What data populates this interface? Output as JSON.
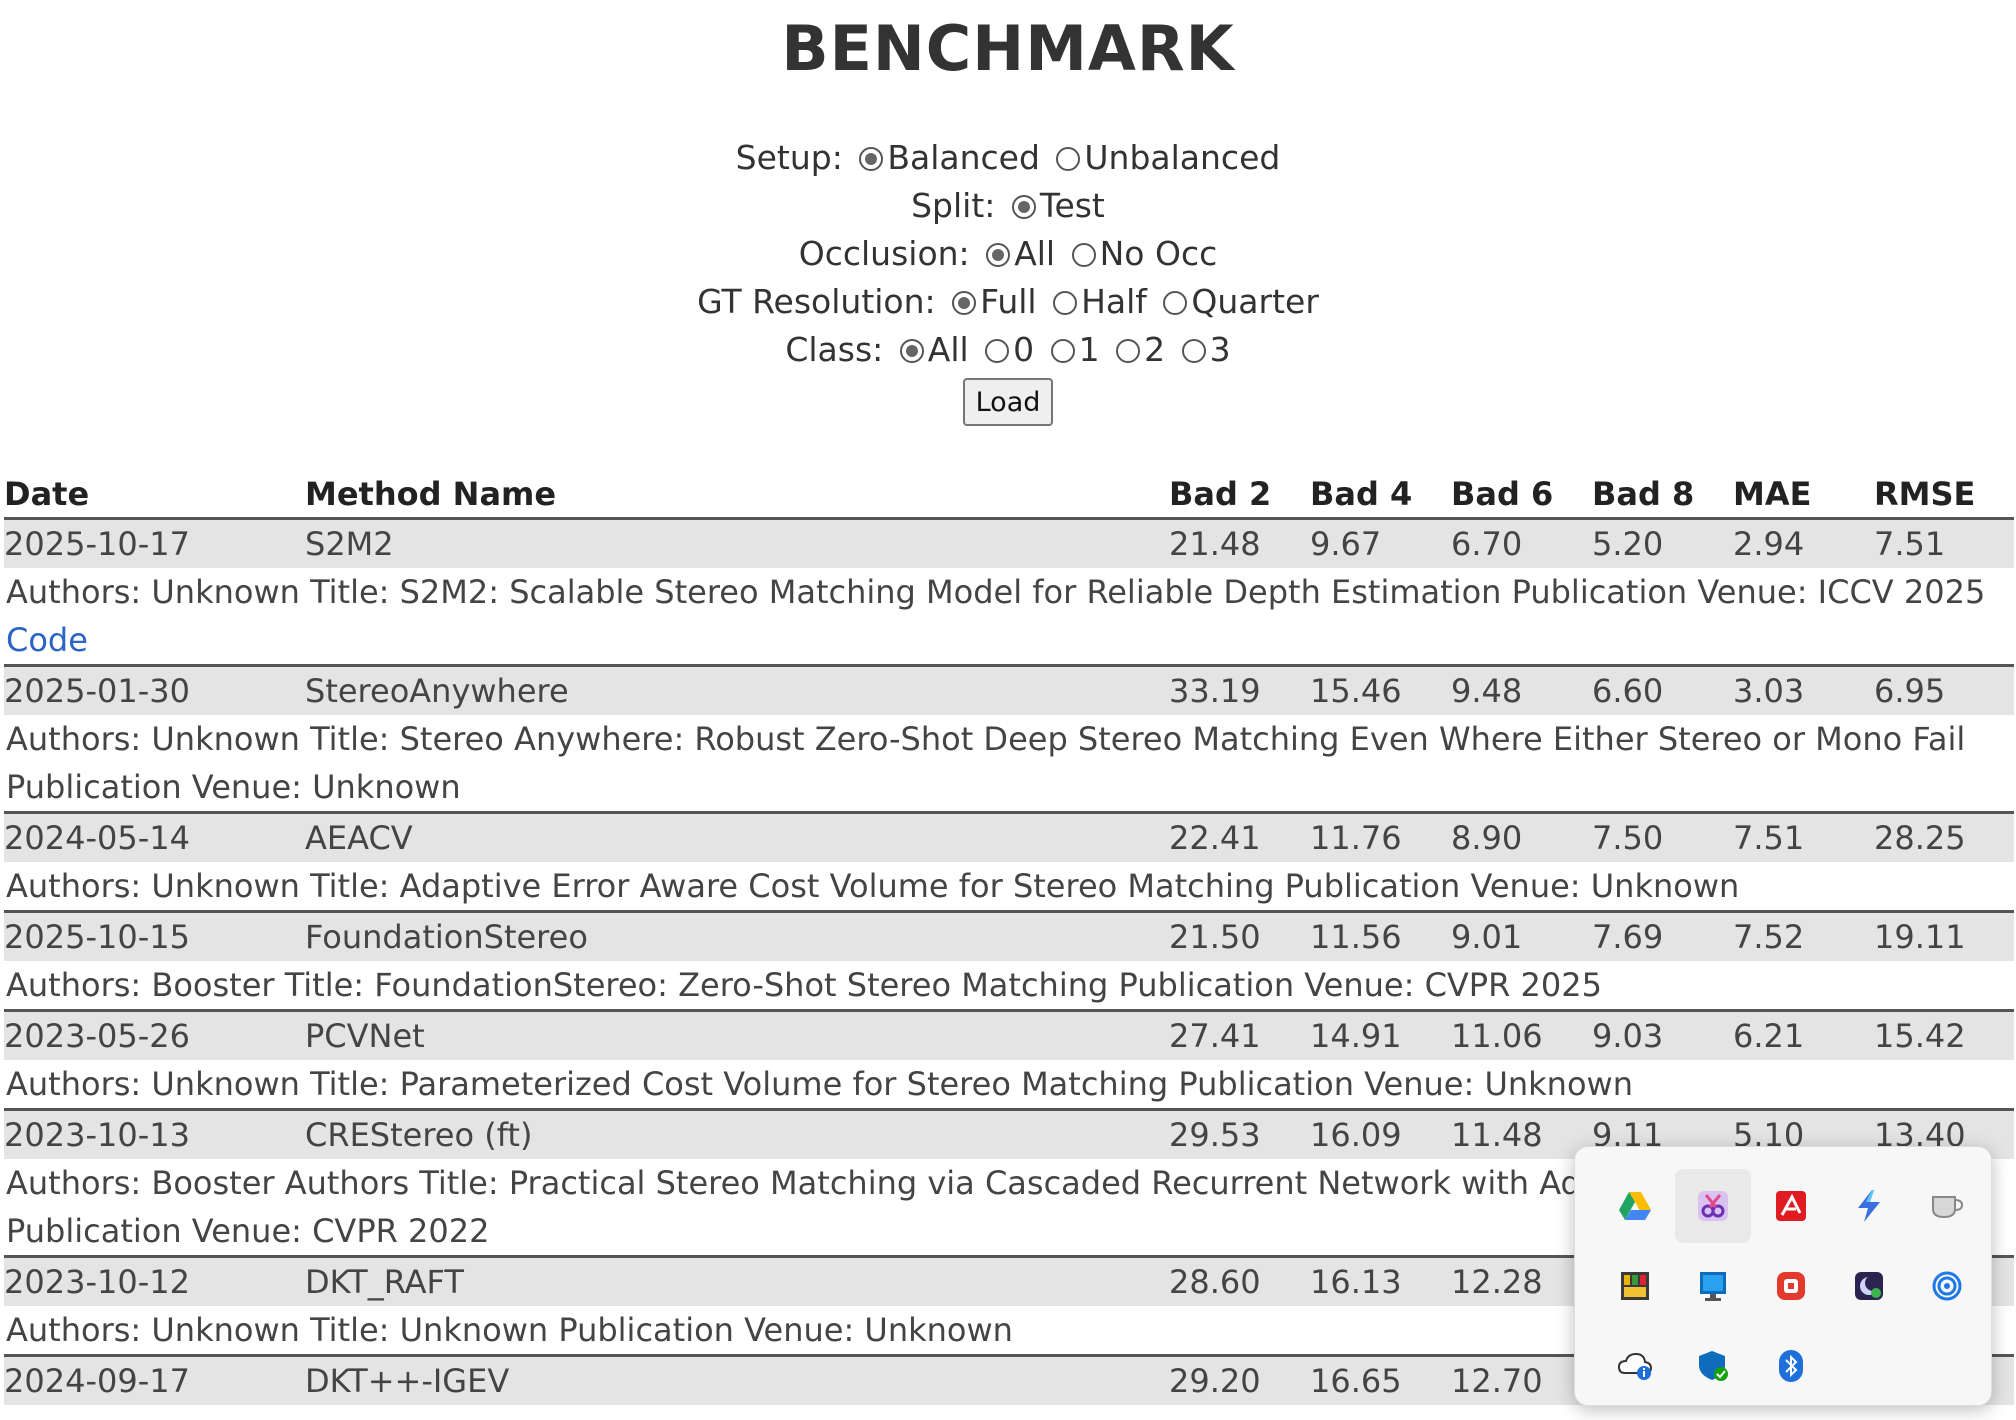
{
  "title": "BENCHMARK",
  "controls": {
    "setup": {
      "label": "Setup:",
      "options": [
        "Balanced",
        "Unbalanced"
      ],
      "selected": "Balanced"
    },
    "split": {
      "label": "Split:",
      "options": [
        "Test"
      ],
      "selected": "Test"
    },
    "occlusion": {
      "label": "Occlusion:",
      "options": [
        "All",
        "No Occ"
      ],
      "selected": "All"
    },
    "gt_resolution": {
      "label": "GT Resolution:",
      "options": [
        "Full",
        "Half",
        "Quarter"
      ],
      "selected": "Full"
    },
    "class": {
      "label": "Class:",
      "options": [
        "All",
        "0",
        "1",
        "2",
        "3"
      ],
      "selected": "All"
    },
    "load_label": "Load"
  },
  "table": {
    "headers": [
      "Date",
      "Method Name",
      "Bad 2",
      "Bad 4",
      "Bad 6",
      "Bad 8",
      "MAE",
      "RMSE"
    ],
    "rows": [
      {
        "date": "2025-10-17",
        "name": "S2M2",
        "bad2": "21.48",
        "bad4": "9.67",
        "bad6": "6.70",
        "bad8": "5.20",
        "mae": "2.94",
        "rmse": "7.51",
        "details": "Authors: Unknown Title: S2M2: Scalable Stereo Matching Model for Reliable Depth Estimation Publication Venue: ICCV 2025",
        "link": "Code"
      },
      {
        "date": "2025-01-30",
        "name": "StereoAnywhere",
        "bad2": "33.19",
        "bad4": "15.46",
        "bad6": "9.48",
        "bad8": "6.60",
        "mae": "3.03",
        "rmse": "6.95",
        "details": "Authors: Unknown Title: Stereo Anywhere: Robust Zero-Shot Deep Stereo Matching Even Where Either Stereo or Mono Fail Publication Venue: Unknown"
      },
      {
        "date": "2024-05-14",
        "name": "AEACV",
        "bad2": "22.41",
        "bad4": "11.76",
        "bad6": "8.90",
        "bad8": "7.50",
        "mae": "7.51",
        "rmse": "28.25",
        "details": "Authors: Unknown Title: Adaptive Error Aware Cost Volume for Stereo Matching Publication Venue: Unknown"
      },
      {
        "date": "2025-10-15",
        "name": "FoundationStereo",
        "bad2": "21.50",
        "bad4": "11.56",
        "bad6": "9.01",
        "bad8": "7.69",
        "mae": "7.52",
        "rmse": "19.11",
        "details": "Authors: Booster Title: FoundationStereo: Zero-Shot Stereo Matching Publication Venue: CVPR 2025"
      },
      {
        "date": "2023-05-26",
        "name": "PCVNet",
        "bad2": "27.41",
        "bad4": "14.91",
        "bad6": "11.06",
        "bad8": "9.03",
        "mae": "6.21",
        "rmse": "15.42",
        "details": "Authors: Unknown Title: Parameterized Cost Volume for Stereo Matching Publication Venue: Unknown"
      },
      {
        "date": "2023-10-13",
        "name": "CREStereo (ft)",
        "bad2": "29.53",
        "bad4": "16.09",
        "bad6": "11.48",
        "bad8": "9.11",
        "mae": "5.10",
        "rmse": "13.40",
        "details": "Authors: Booster Authors Title: Practical Stereo Matching via Cascaded Recurrent Network with Ada",
        "details2": "Publication Venue: CVPR 2022"
      },
      {
        "date": "2023-10-12",
        "name": "DKT_RAFT",
        "bad2": "28.60",
        "bad4": "16.13",
        "bad6": "12.28",
        "bad8": "",
        "mae": "",
        "rmse": "",
        "details": "Authors: Unknown Title: Unknown Publication Venue: Unknown"
      },
      {
        "date": "2024-09-17",
        "name": "DKT++-IGEV",
        "bad2": "29.20",
        "bad4": "16.65",
        "bad6": "12.70",
        "bad8": "",
        "mae": "",
        "rmse": ""
      }
    ]
  },
  "tray": {
    "icons": [
      "google-drive-icon",
      "snipping-tool-icon",
      "security-shield-icon",
      "lightning-app-icon",
      "coffee-cup-icon",
      "color-palette-app-icon",
      "monitor-app-icon",
      "red-app-icon",
      "night-owl-app-icon",
      "spiral-app-icon",
      "cloud-info-icon",
      "windows-security-icon",
      "bluetooth-icon"
    ]
  }
}
